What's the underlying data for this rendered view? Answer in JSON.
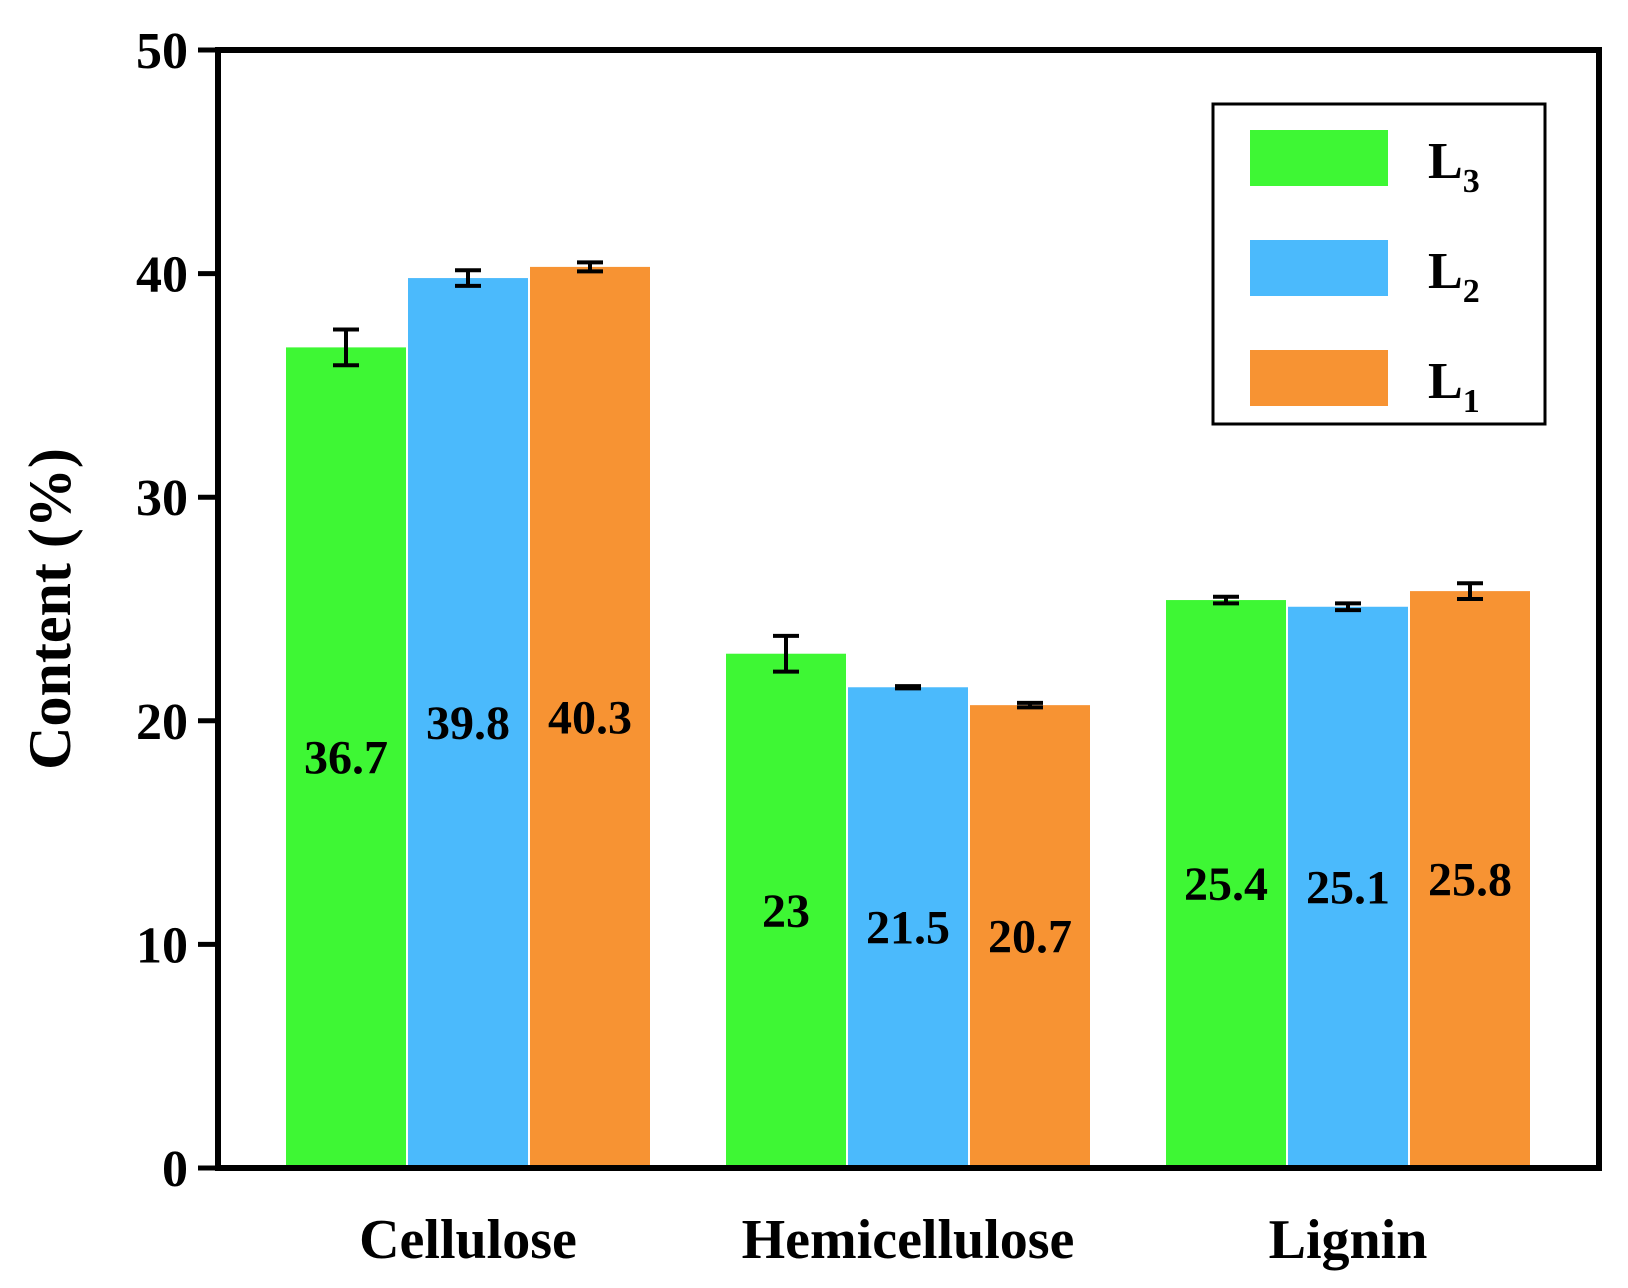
{
  "chart_data": {
    "type": "bar",
    "title": "",
    "xlabel": "",
    "ylabel": "Content (%)",
    "ylim": [
      0,
      50
    ],
    "yticks": [
      0,
      10,
      20,
      30,
      40,
      50
    ],
    "categories": [
      "Cellulose",
      "Hemicellulose",
      "Lignin"
    ],
    "series": [
      {
        "name": "L3",
        "legend_base": "L",
        "legend_sub": "3",
        "color": "#3ef734",
        "values": [
          36.7,
          23,
          25.4
        ],
        "errors": [
          0.8,
          0.8,
          0.15
        ],
        "labels": [
          "36.7",
          "23",
          "25.4"
        ]
      },
      {
        "name": "L2",
        "legend_base": "L",
        "legend_sub": "2",
        "color": "#4bbafc",
        "values": [
          39.8,
          21.5,
          25.1
        ],
        "errors": [
          0.35,
          0.05,
          0.15
        ],
        "labels": [
          "39.8",
          "21.5",
          "25.1"
        ]
      },
      {
        "name": "L1",
        "legend_base": "L",
        "legend_sub": "1",
        "color": "#f79333",
        "values": [
          40.3,
          20.7,
          25.8
        ],
        "errors": [
          0.2,
          0.1,
          0.35
        ],
        "labels": [
          "40.3",
          "20.7",
          "25.8"
        ]
      }
    ],
    "legend_position": "top-right",
    "grid": false
  }
}
